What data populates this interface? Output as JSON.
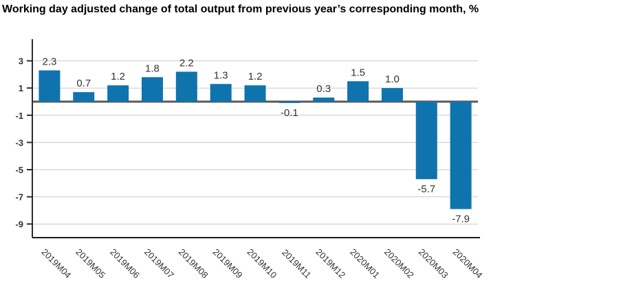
{
  "title": "Working day adjusted change of total output from previous year’s corresponding month, %",
  "colors": {
    "bar": "#0f73ae",
    "grid": "#c9c9c9",
    "zero_line": "#595959",
    "axis": "#2b2b2b",
    "value_label": "#333333",
    "tick_label": "#333333",
    "title": "#000000",
    "background": "#ffffff"
  },
  "chart_data": {
    "type": "bar",
    "title": "Working day adjusted change of total output from previous year’s corresponding month, %",
    "categories": [
      "2019M04",
      "2019M05",
      "2019M06",
      "2019M07",
      "2019M08",
      "2019M09",
      "2019M10",
      "2019M11",
      "2019M12",
      "2020M01",
      "2020M02",
      "2020M03",
      "2020M04"
    ],
    "values": [
      2.3,
      0.7,
      1.2,
      1.8,
      2.2,
      1.3,
      1.2,
      -0.1,
      0.3,
      1.5,
      1.0,
      -5.7,
      -7.9
    ],
    "value_labels": [
      "2.3",
      "0.7",
      "1.2",
      "1.8",
      "2.2",
      "1.3",
      "1.2",
      "-0.1",
      "0.3",
      "1.5",
      "1.0",
      "-5.7",
      "-7.9"
    ],
    "xlabel": "",
    "ylabel": "",
    "y_ticks": [
      3,
      1,
      -1,
      -3,
      -5,
      -7,
      -9
    ],
    "ylim": [
      -10,
      4.6
    ],
    "grid": true,
    "legend": false,
    "x_label_rotation_deg": 45
  }
}
